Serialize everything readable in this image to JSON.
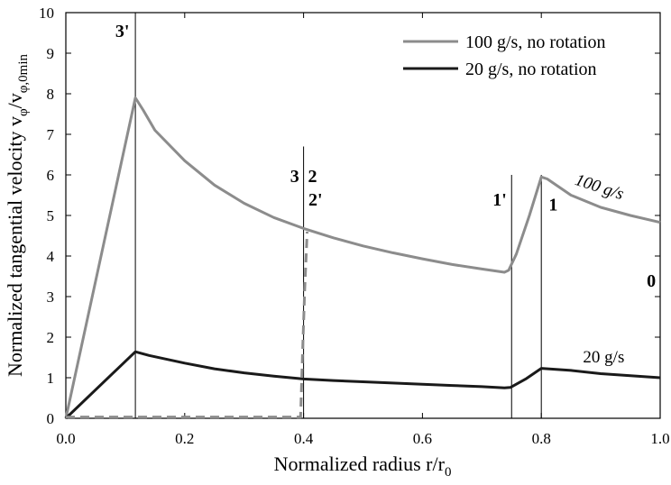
{
  "chart_data": {
    "type": "line",
    "title": "",
    "xlabel": {
      "main": "Normalized radius r/r",
      "sub": "0"
    },
    "ylabel": {
      "main": "Normalized tangential velocity v",
      "sub1": "φ",
      "mid": "/v",
      "sub2": "φ,0min"
    },
    "xlim": [
      0.0,
      1.0
    ],
    "ylim": [
      0,
      10
    ],
    "xticks": [
      "0.0",
      "0.2",
      "0.4",
      "0.6",
      "0.8",
      "1.0"
    ],
    "yticks": [
      "0",
      "1",
      "2",
      "3",
      "4",
      "5",
      "6",
      "7",
      "8",
      "9",
      "10"
    ],
    "grid": false,
    "legend_position": "top-right",
    "colors": {
      "series_100": "#8c8c8c",
      "series_20": "#1a1a1a",
      "dashed": "#8c8c8c",
      "axis": "#000000"
    },
    "series": [
      {
        "name": "100 g/s, no rotation",
        "points": [
          [
            0.0,
            0.0
          ],
          [
            0.117,
            7.9
          ],
          [
            0.13,
            7.6
          ],
          [
            0.15,
            7.1
          ],
          [
            0.2,
            6.35
          ],
          [
            0.25,
            5.75
          ],
          [
            0.3,
            5.3
          ],
          [
            0.35,
            4.95
          ],
          [
            0.4,
            4.68
          ],
          [
            0.45,
            4.45
          ],
          [
            0.5,
            4.25
          ],
          [
            0.55,
            4.08
          ],
          [
            0.6,
            3.93
          ],
          [
            0.65,
            3.79
          ],
          [
            0.7,
            3.68
          ],
          [
            0.738,
            3.6
          ],
          [
            0.745,
            3.65
          ],
          [
            0.758,
            4.05
          ],
          [
            0.78,
            5.0
          ],
          [
            0.8,
            5.95
          ],
          [
            0.81,
            5.9
          ],
          [
            0.85,
            5.5
          ],
          [
            0.9,
            5.2
          ],
          [
            0.95,
            5.0
          ],
          [
            1.0,
            4.83
          ]
        ]
      },
      {
        "name": "20 g/s, no rotation",
        "points": [
          [
            0.0,
            0.0
          ],
          [
            0.117,
            1.64
          ],
          [
            0.14,
            1.55
          ],
          [
            0.2,
            1.36
          ],
          [
            0.25,
            1.22
          ],
          [
            0.3,
            1.12
          ],
          [
            0.35,
            1.04
          ],
          [
            0.4,
            0.97
          ],
          [
            0.45,
            0.93
          ],
          [
            0.5,
            0.9
          ],
          [
            0.55,
            0.87
          ],
          [
            0.6,
            0.84
          ],
          [
            0.65,
            0.81
          ],
          [
            0.7,
            0.78
          ],
          [
            0.738,
            0.75
          ],
          [
            0.748,
            0.76
          ],
          [
            0.775,
            0.98
          ],
          [
            0.8,
            1.23
          ],
          [
            0.85,
            1.18
          ],
          [
            0.9,
            1.1
          ],
          [
            0.95,
            1.05
          ],
          [
            1.0,
            1.0
          ]
        ]
      },
      {
        "name": "",
        "style": "dashed",
        "points": [
          [
            0.0,
            0.03
          ],
          [
            0.2,
            0.03
          ],
          [
            0.395,
            0.03
          ],
          [
            0.398,
            1.5
          ],
          [
            0.402,
            3.2
          ],
          [
            0.406,
            4.6
          ]
        ]
      }
    ],
    "vlines": [
      {
        "x": 0.117,
        "ymax": 10
      },
      {
        "x": 0.4,
        "ymax": 6.7
      },
      {
        "x": 0.75,
        "ymax": 6.0
      },
      {
        "x": 0.8,
        "ymax": 6.0
      }
    ],
    "annotations": [
      {
        "text": "3'",
        "x": 0.095,
        "y": 9.4,
        "bold": true,
        "italic": false,
        "rotate": 0
      },
      {
        "text": "3",
        "x": 0.385,
        "y": 5.82,
        "bold": true,
        "italic": false,
        "rotate": 0
      },
      {
        "text": "2",
        "x": 0.415,
        "y": 5.82,
        "bold": true,
        "italic": false,
        "rotate": 0
      },
      {
        "text": "2'",
        "x": 0.42,
        "y": 5.25,
        "bold": true,
        "italic": false,
        "rotate": 0
      },
      {
        "text": "1'",
        "x": 0.73,
        "y": 5.25,
        "bold": true,
        "italic": false,
        "rotate": 0
      },
      {
        "text": "1",
        "x": 0.82,
        "y": 5.12,
        "bold": true,
        "italic": false,
        "rotate": 0
      },
      {
        "text": "0",
        "x": 0.985,
        "y": 3.25,
        "bold": true,
        "italic": false,
        "rotate": 0
      },
      {
        "text": "100 g/s",
        "x": 0.895,
        "y": 5.58,
        "bold": false,
        "italic": true,
        "rotate": 18
      },
      {
        "text": "20 g/s",
        "x": 0.905,
        "y": 1.38,
        "bold": false,
        "italic": false,
        "rotate": 0
      }
    ]
  }
}
